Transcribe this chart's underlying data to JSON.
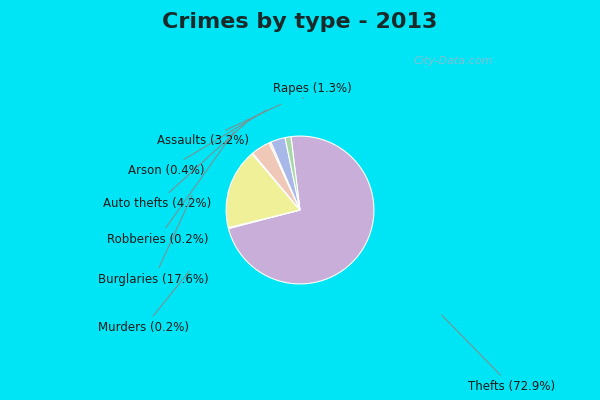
{
  "title": "Crimes by type - 2013",
  "slices": [
    {
      "label": "Thefts",
      "pct": 72.9,
      "color": "#c8aed8"
    },
    {
      "label": "Burglaries",
      "pct": 17.6,
      "color": "#f0f098"
    },
    {
      "label": "Auto thefts",
      "pct": 4.2,
      "color": "#f0c8b8"
    },
    {
      "label": "Assaults",
      "pct": 3.2,
      "color": "#a8b8e8"
    },
    {
      "label": "Rapes",
      "pct": 1.3,
      "color": "#a8d8a8"
    },
    {
      "label": "Arson",
      "pct": 0.4,
      "color": "#f8d8c8"
    },
    {
      "label": "Robberies",
      "pct": 0.2,
      "color": "#d0e0f8"
    },
    {
      "label": "Murders",
      "pct": 0.2,
      "color": "#d8ecd0"
    }
  ],
  "startangle": 97,
  "counterclock": false,
  "title_fontsize": 16,
  "label_fontsize": 8.5,
  "cyan_bar_color": "#00e5f5",
  "bg_color_top": "#d8ece8",
  "bg_color_bottom": "#e8f0f8",
  "watermark": "City-Data.com",
  "watermark_color": "#9ab8cc"
}
